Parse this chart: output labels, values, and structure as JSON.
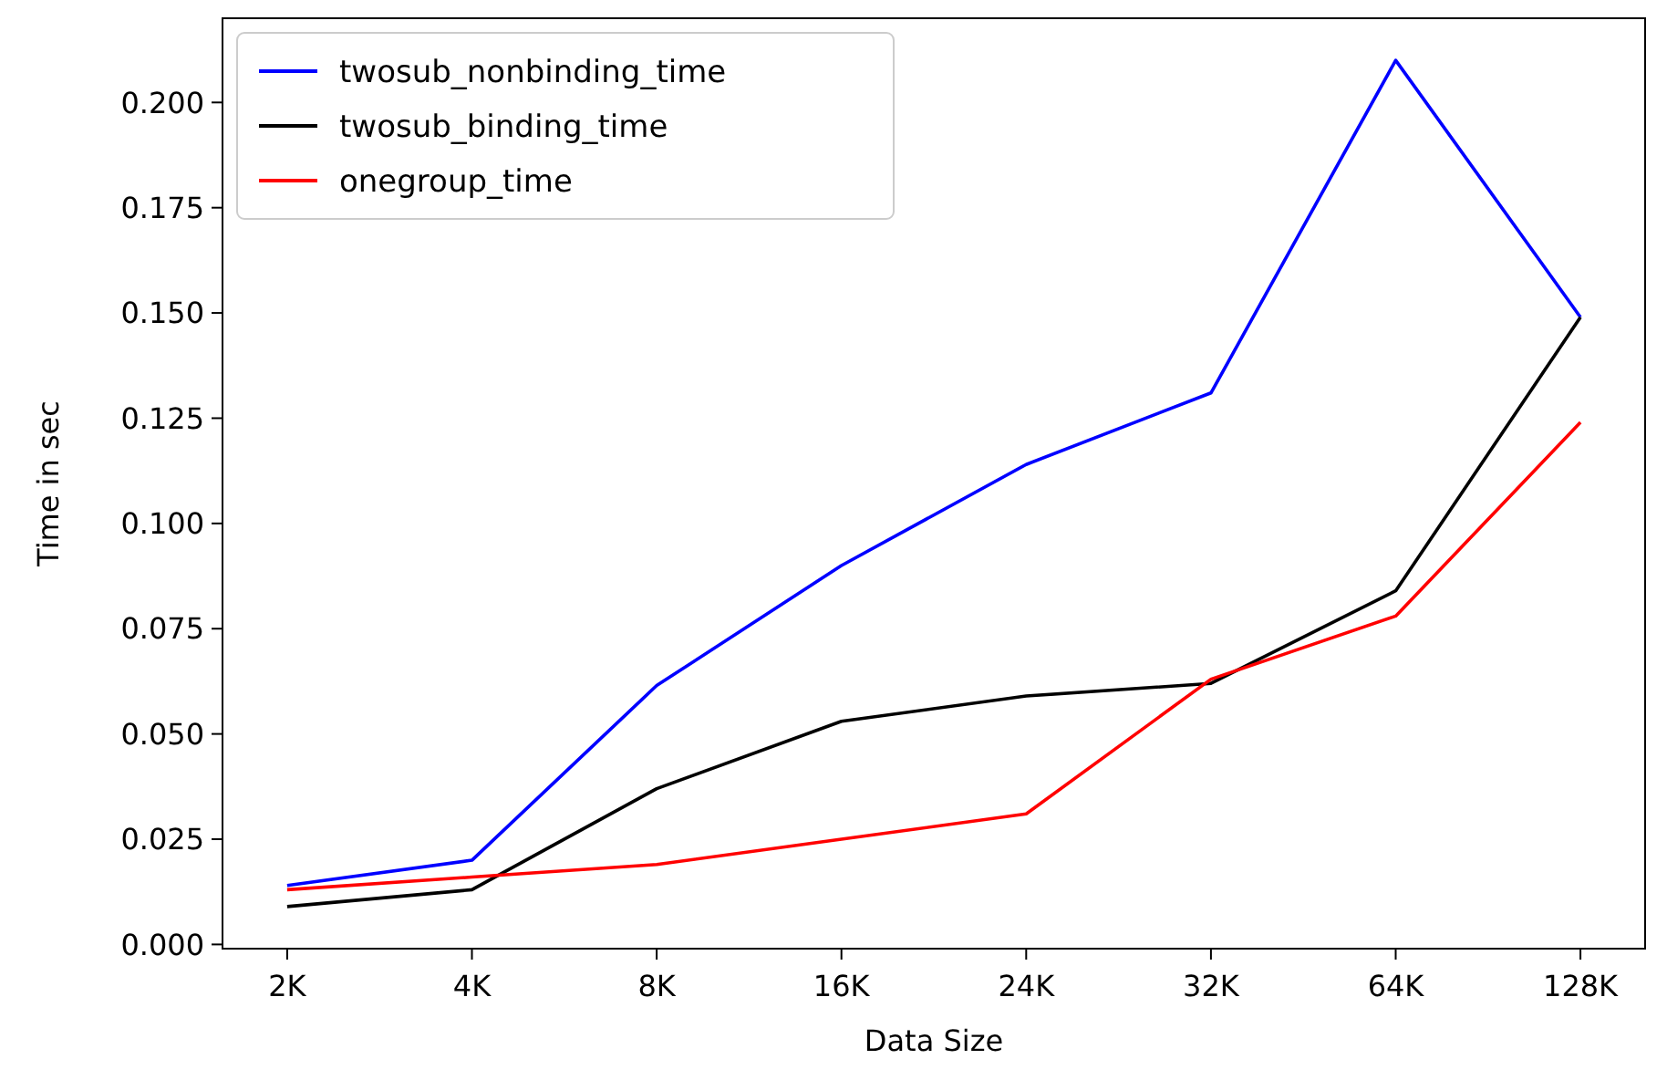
{
  "chart_data": {
    "type": "line",
    "xlabel": "Data Size",
    "ylabel": "Time in sec",
    "categories": [
      "2K",
      "4K",
      "8K",
      "16K",
      "24K",
      "32K",
      "64K",
      "128K"
    ],
    "series": [
      {
        "name": "twosub_nonbinding_time",
        "color": "#0000ff",
        "values": [
          0.014,
          0.02,
          0.0615,
          0.09,
          0.114,
          0.131,
          0.21,
          0.149
        ]
      },
      {
        "name": "twosub_binding_time",
        "color": "#000000",
        "values": [
          0.009,
          0.013,
          0.037,
          0.053,
          0.059,
          0.062,
          0.084,
          0.149
        ]
      },
      {
        "name": "onegroup_time",
        "color": "#ff0000",
        "values": [
          0.013,
          0.016,
          0.019,
          0.025,
          0.031,
          0.063,
          0.078,
          0.124
        ]
      }
    ],
    "ylim": [
      -0.001,
      0.22
    ],
    "yticks": [
      {
        "value": 0,
        "label": "0.000"
      },
      {
        "value": 0.025,
        "label": "0.025"
      },
      {
        "value": 0.05,
        "label": "0.050"
      },
      {
        "value": 0.075,
        "label": "0.075"
      },
      {
        "value": 0.1,
        "label": "0.100"
      },
      {
        "value": 0.125,
        "label": "0.125"
      },
      {
        "value": 0.15,
        "label": "0.150"
      },
      {
        "value": 0.175,
        "label": "0.175"
      },
      {
        "value": 0.2,
        "label": "0.200"
      }
    ],
    "legend": "top left",
    "grid": false,
    "marker": "none",
    "line_style": "solid"
  }
}
